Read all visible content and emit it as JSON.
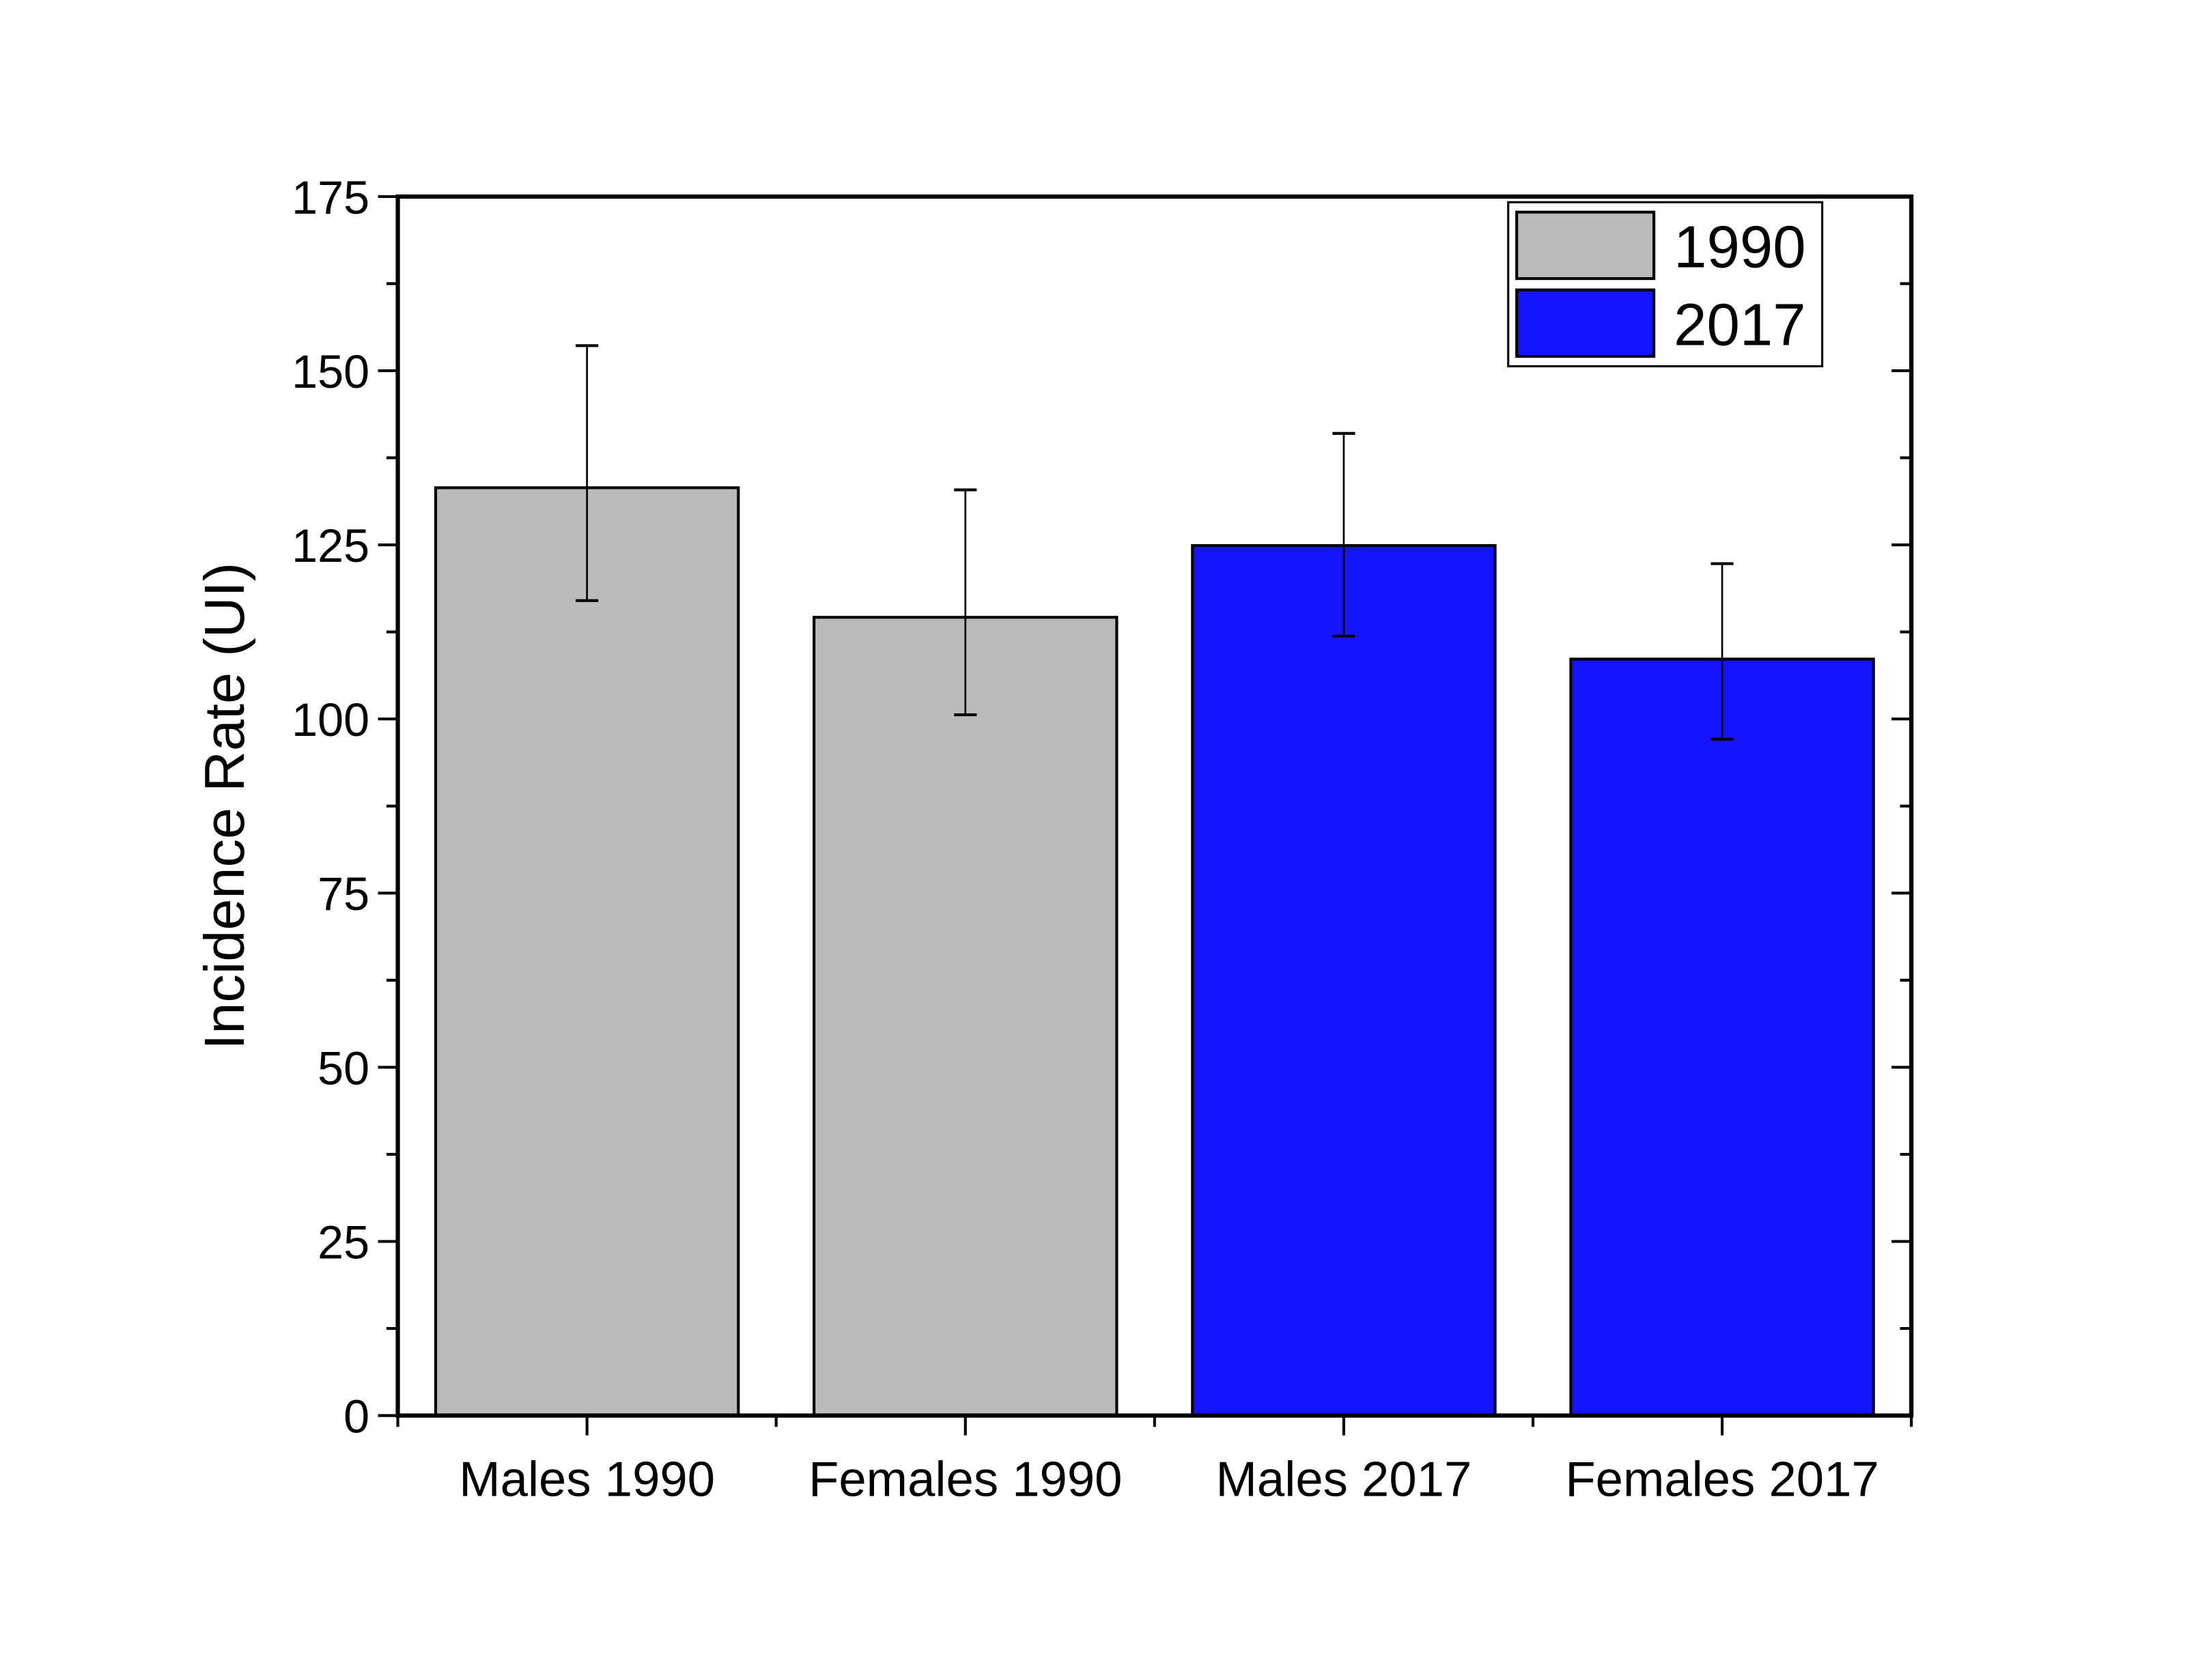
{
  "chart_data": {
    "type": "bar",
    "title": "",
    "xlabel": "",
    "ylabel": "Incidence Rate (UI)",
    "ylim": [
      0,
      175
    ],
    "yticks": [
      "0",
      "25",
      "50",
      "75",
      "100",
      "125",
      "150",
      "175"
    ],
    "categories": [
      "Males 1990",
      "Females 1990",
      "Males 2017",
      "Females 2017"
    ],
    "values": [
      133.2,
      114.6,
      124.9,
      108.6
    ],
    "error_upper": [
      153.6,
      132.9,
      141.0,
      122.3
    ],
    "error_lower": [
      117.0,
      100.6,
      111.9,
      97.1
    ],
    "bar_series": [
      "1990",
      "1990",
      "2017",
      "2017"
    ],
    "legend": {
      "placement": "top-right",
      "entries": [
        {
          "name": "1990",
          "color": "#bababa"
        },
        {
          "name": "2017",
          "color": "#1414ff"
        }
      ]
    },
    "grid": false
  }
}
